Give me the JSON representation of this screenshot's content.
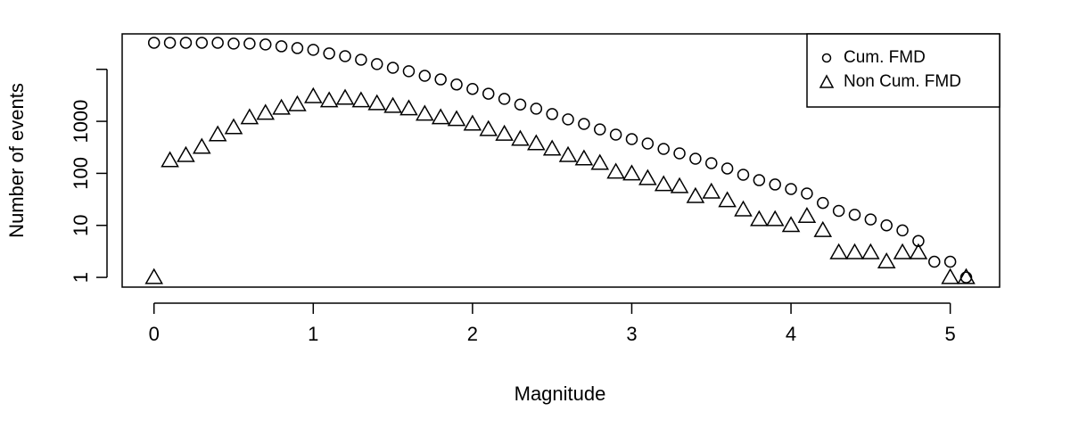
{
  "chart_data": {
    "type": "scatter",
    "xlabel": "Magnitude",
    "ylabel": "Number of events",
    "xlim": [
      -0.2,
      5.31
    ],
    "ylim": [
      0.65,
      48000
    ],
    "yscale": "log",
    "xticks": [
      0,
      1,
      2,
      3,
      4,
      5
    ],
    "yticks": [
      1,
      10,
      100,
      1000,
      {
        "value": 10000,
        "label": null
      }
    ],
    "legend": "top-right",
    "series": [
      {
        "name": "Cum. FMD",
        "marker": "circle",
        "color": "#000000",
        "x": [
          0,
          0.1,
          0.2,
          0.3,
          0.4,
          0.5,
          0.6,
          0.7,
          0.8,
          0.9,
          1,
          1.1,
          1.2,
          1.3,
          1.4,
          1.5,
          1.6,
          1.7,
          1.8,
          1.9,
          2,
          2.1,
          2.2,
          2.3,
          2.4,
          2.5,
          2.6,
          2.7,
          2.8,
          2.9,
          3,
          3.1,
          3.2,
          3.3,
          3.4,
          3.5,
          3.6,
          3.7,
          3.8,
          3.9,
          4,
          4.1,
          4.2,
          4.3,
          4.4,
          4.5,
          4.6,
          4.7,
          4.8,
          4.9,
          5,
          5.1
        ],
        "values": [
          32400,
          32400,
          32400,
          32400,
          32400,
          31200,
          31200,
          30000,
          27700,
          25600,
          23700,
          20200,
          17900,
          15300,
          12600,
          10700,
          9200,
          7500,
          6400,
          5100,
          4200,
          3400,
          2700,
          2100,
          1750,
          1380,
          1090,
          890,
          700,
          555,
          455,
          374,
          295,
          242,
          191,
          157,
          124,
          94,
          74,
          61,
          50,
          41,
          27,
          19,
          16,
          13,
          10,
          8,
          5,
          2,
          2,
          1
        ]
      },
      {
        "name": "Non Cum. FMD",
        "marker": "triangle",
        "color": "#000000",
        "x": [
          0,
          0.1,
          0.2,
          0.3,
          0.4,
          0.5,
          0.6,
          0.7,
          0.8,
          0.9,
          1,
          1.1,
          1.2,
          1.3,
          1.4,
          1.5,
          1.6,
          1.7,
          1.8,
          1.9,
          2,
          2.1,
          2.2,
          2.3,
          2.4,
          2.5,
          2.6,
          2.7,
          2.8,
          2.9,
          3,
          3.1,
          3.2,
          3.3,
          3.4,
          3.5,
          3.6,
          3.7,
          3.8,
          3.9,
          4,
          4.1,
          4.2,
          4.3,
          4.4,
          4.5,
          4.6,
          4.7,
          4.8,
          5,
          5.1
        ],
        "values": [
          1,
          177,
          222,
          319,
          555,
          760,
          1180,
          1440,
          1800,
          2100,
          3000,
          2500,
          2800,
          2500,
          2200,
          1950,
          1750,
          1380,
          1180,
          1090,
          890,
          700,
          570,
          455,
          374,
          295,
          222,
          191,
          157,
          106,
          98,
          80,
          61,
          56,
          36,
          44,
          30,
          20,
          13,
          13,
          10,
          15,
          8,
          3,
          3,
          3,
          2,
          3,
          3,
          1,
          1
        ]
      }
    ]
  }
}
